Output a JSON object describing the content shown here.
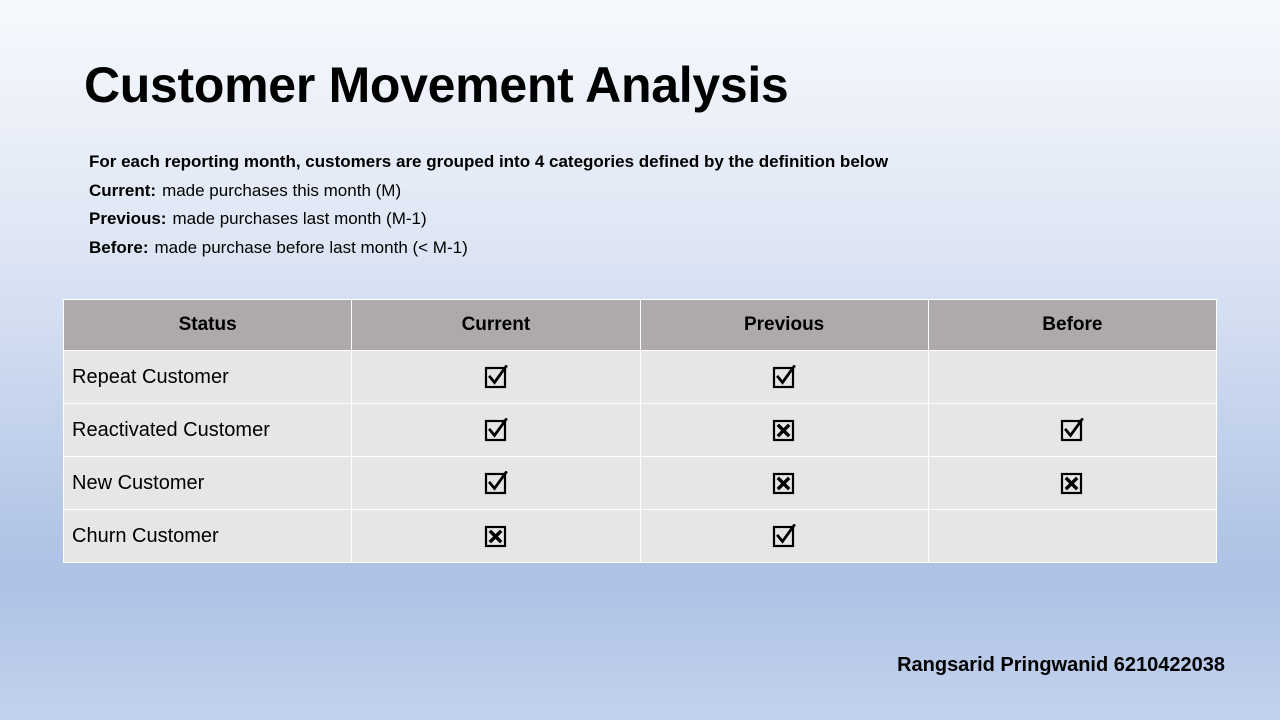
{
  "title": "Customer Movement Analysis",
  "intro": "For each reporting month, customers are grouped into 4 categories defined by the definition below",
  "definitions": [
    {
      "term": "Current:",
      "text": "made purchases this month (M)"
    },
    {
      "term": "Previous:",
      "text": "made purchases last month (M-1)"
    },
    {
      "term": "Before:",
      "text": "made purchase before last month (< M-1)"
    }
  ],
  "table": {
    "headers": [
      "Status",
      "Current",
      "Previous",
      "Before"
    ],
    "rows": [
      {
        "label": "Repeat Customer",
        "current": "check",
        "previous": "check",
        "before": "none"
      },
      {
        "label": "Reactivated Customer",
        "current": "check",
        "previous": "cross",
        "before": "check"
      },
      {
        "label": "New Customer",
        "current": "check",
        "previous": "cross",
        "before": "cross"
      },
      {
        "label": "Churn Customer",
        "current": "cross",
        "previous": "check",
        "before": "none"
      }
    ]
  },
  "author": "Rangsarid Pringwanid 6210422038",
  "colors": {
    "header_bg": "#aeaaaa",
    "cell_bg": "#e7e6e6"
  }
}
